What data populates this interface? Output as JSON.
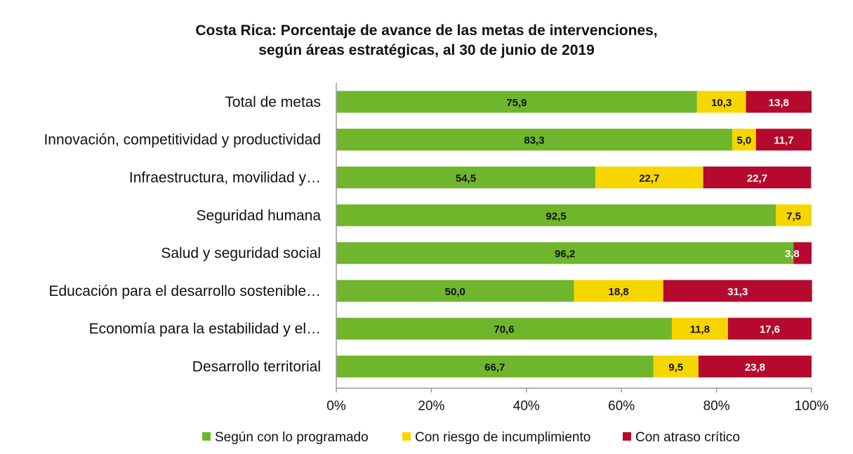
{
  "chart_data": {
    "type": "bar",
    "orientation": "horizontal",
    "stacked": "percent",
    "title": "Costa Rica: Porcentaje de avance de las metas de intervenciones,",
    "subtitle": "según áreas estratégicas, al 30 de junio de 2019",
    "categories": [
      "Total de metas",
      "Innovación, competitividad y productividad",
      "Infraestructura, movilidad y…",
      "Seguridad humana",
      "Salud y seguridad social",
      "Educación para el desarrollo sostenible…",
      "Economía para la estabilidad y el…",
      "Desarrollo territorial"
    ],
    "series": [
      {
        "name": "Según con lo programado",
        "color": "#70b62c",
        "label_color": "#111111",
        "values": [
          75.9,
          83.3,
          54.5,
          92.5,
          96.2,
          50.0,
          70.6,
          66.7
        ]
      },
      {
        "name": "Con riesgo de incumplimiento",
        "color": "#f7d600",
        "label_color": "#111111",
        "values": [
          10.3,
          5.0,
          22.7,
          7.5,
          0,
          18.8,
          11.8,
          9.5
        ]
      },
      {
        "name": "Con atraso crítico",
        "color": "#b5092d",
        "label_color": "#ffffff",
        "values": [
          13.8,
          11.7,
          22.7,
          0,
          3.8,
          31.3,
          17.6,
          23.8
        ]
      }
    ],
    "xlim": [
      0,
      100
    ],
    "xticks": [
      "0%",
      "20%",
      "40%",
      "60%",
      "80%",
      "100%"
    ],
    "legend_position": "bottom",
    "grid": false
  }
}
